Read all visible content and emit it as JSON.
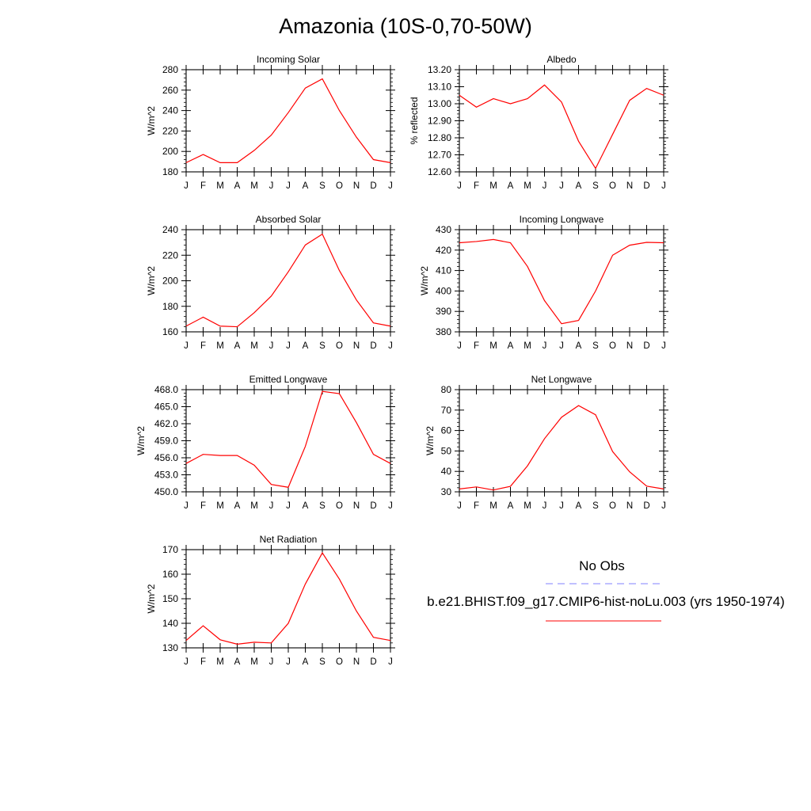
{
  "title": "Amazonia (10S-0,70-50W)",
  "colors": {
    "model": "#ff0000",
    "obs": "#8080ff",
    "axis": "#000000"
  },
  "legend": {
    "obs_label": "No Obs",
    "model_label": "b.e21.BHIST.f09_g17.CMIP6-hist-noLu.003 (yrs 1950-1974)"
  },
  "chart_data": [
    {
      "type": "line",
      "title": "Incoming Solar",
      "ylabel": "W/m^2",
      "xlabel": "",
      "categories": [
        "J",
        "F",
        "M",
        "A",
        "M",
        "J",
        "J",
        "A",
        "S",
        "O",
        "N",
        "D",
        "J"
      ],
      "ylim": [
        180,
        280
      ],
      "yticks": [
        "180",
        "200",
        "220",
        "240",
        "260",
        "280"
      ],
      "yticks_values": [
        180,
        200,
        220,
        240,
        260,
        280
      ],
      "series": [
        {
          "values": [
            189,
            197,
            189,
            189,
            201,
            216,
            238,
            262,
            271,
            240,
            214,
            192,
            189
          ]
        }
      ]
    },
    {
      "type": "line",
      "title": "Albedo",
      "ylabel": "% reflected",
      "xlabel": "",
      "categories": [
        "J",
        "F",
        "M",
        "A",
        "M",
        "J",
        "J",
        "A",
        "S",
        "O",
        "N",
        "D",
        "J"
      ],
      "ylim": [
        12.6,
        13.2
      ],
      "yticks": [
        "12.60",
        "12.70",
        "12.80",
        "12.90",
        "13.00",
        "13.10",
        "13.20"
      ],
      "yticks_values": [
        12.6,
        12.7,
        12.8,
        12.9,
        13.0,
        13.1,
        13.2
      ],
      "series": [
        {
          "values": [
            13.05,
            12.98,
            13.03,
            13.0,
            13.03,
            13.11,
            13.01,
            12.78,
            12.62,
            12.82,
            13.02,
            13.09,
            13.05
          ]
        }
      ]
    },
    {
      "type": "line",
      "title": "Absorbed Solar",
      "ylabel": "W/m^2",
      "xlabel": "",
      "categories": [
        "J",
        "F",
        "M",
        "A",
        "M",
        "J",
        "J",
        "A",
        "S",
        "O",
        "N",
        "D",
        "J"
      ],
      "ylim": [
        160,
        240
      ],
      "yticks": [
        "160",
        "180",
        "200",
        "220",
        "240"
      ],
      "yticks_values": [
        160,
        180,
        200,
        220,
        240
      ],
      "series": [
        {
          "values": [
            164.5,
            171.5,
            164.5,
            164,
            175,
            188,
            207,
            228,
            236.5,
            208,
            185,
            167,
            164.5
          ]
        }
      ]
    },
    {
      "type": "line",
      "title": "Incoming Longwave",
      "ylabel": "W/m^2",
      "xlabel": "",
      "categories": [
        "J",
        "F",
        "M",
        "A",
        "M",
        "J",
        "J",
        "A",
        "S",
        "O",
        "N",
        "D",
        "J"
      ],
      "ylim": [
        380,
        430
      ],
      "yticks": [
        "380",
        "390",
        "400",
        "410",
        "420",
        "430"
      ],
      "yticks_values": [
        380,
        390,
        400,
        410,
        420,
        430
      ],
      "series": [
        {
          "values": [
            423.6,
            424.2,
            425.2,
            423.6,
            412,
            395.3,
            384,
            385.6,
            400,
            417.5,
            422.4,
            423.8,
            423.6
          ]
        }
      ]
    },
    {
      "type": "line",
      "title": "Emitted Longwave",
      "ylabel": "W/m^2",
      "xlabel": "",
      "categories": [
        "J",
        "F",
        "M",
        "A",
        "M",
        "J",
        "J",
        "A",
        "S",
        "O",
        "N",
        "D",
        "J"
      ],
      "ylim": [
        450.0,
        468.0
      ],
      "yticks": [
        "450.0",
        "453.0",
        "456.0",
        "459.0",
        "462.0",
        "465.0",
        "468.0"
      ],
      "yticks_values": [
        450,
        453,
        456,
        459,
        462,
        465,
        468
      ],
      "series": [
        {
          "values": [
            455,
            456.6,
            456.4,
            456.4,
            454.7,
            451.3,
            450.8,
            458,
            467.7,
            467.3,
            462.2,
            456.6,
            455
          ]
        }
      ]
    },
    {
      "type": "line",
      "title": "Net Longwave",
      "ylabel": "W/m^2",
      "xlabel": "",
      "categories": [
        "J",
        "F",
        "M",
        "A",
        "M",
        "J",
        "J",
        "A",
        "S",
        "O",
        "N",
        "D",
        "J"
      ],
      "ylim": [
        30,
        80
      ],
      "yticks": [
        "30",
        "40",
        "50",
        "60",
        "70",
        "80"
      ],
      "yticks_values": [
        30,
        40,
        50,
        60,
        70,
        80
      ],
      "series": [
        {
          "values": [
            31.4,
            32.4,
            30.9,
            32.7,
            42.7,
            56,
            66.5,
            72.2,
            67.7,
            49.7,
            39.8,
            32.8,
            31.4
          ]
        }
      ]
    },
    {
      "type": "line",
      "title": "Net Radiation",
      "ylabel": "W/m^2",
      "xlabel": "",
      "categories": [
        "J",
        "F",
        "M",
        "A",
        "M",
        "J",
        "J",
        "A",
        "S",
        "O",
        "N",
        "D",
        "J"
      ],
      "ylim": [
        130,
        170
      ],
      "yticks": [
        "130",
        "140",
        "150",
        "160",
        "170"
      ],
      "yticks_values": [
        130,
        140,
        150,
        160,
        170
      ],
      "series": [
        {
          "values": [
            133,
            139,
            133.3,
            131.5,
            132.3,
            132,
            140,
            156,
            168.7,
            158,
            145,
            134.3,
            133
          ]
        }
      ]
    }
  ]
}
